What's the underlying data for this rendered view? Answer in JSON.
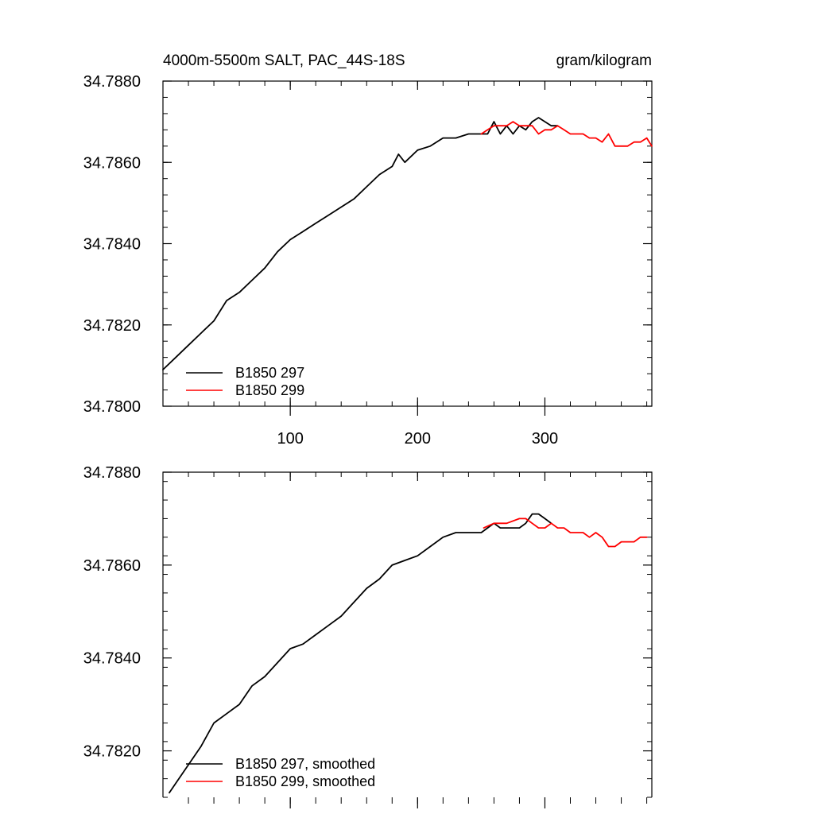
{
  "chart_data": [
    {
      "type": "line",
      "title": "4000m-5500m SALT, PAC_44S-18S",
      "units": "gram/kilogram",
      "xlabel": "",
      "ylabel": "",
      "xlim": [
        0,
        384
      ],
      "ylim": [
        34.78,
        34.788
      ],
      "x_ticks": [
        100,
        200,
        300
      ],
      "x_tick_labels": [
        "100",
        "200",
        "300"
      ],
      "y_ticks": [
        34.78,
        34.782,
        34.784,
        34.786,
        34.788
      ],
      "y_tick_labels": [
        "34.7800",
        "34.7820",
        "34.7840",
        "34.7860",
        "34.7880"
      ],
      "legend_position": "bottom-left",
      "series": [
        {
          "name": "B1850 297",
          "color": "#000000",
          "x": [
            0,
            10,
            20,
            30,
            40,
            50,
            60,
            70,
            80,
            90,
            100,
            110,
            120,
            130,
            140,
            150,
            160,
            170,
            180,
            185,
            190,
            200,
            210,
            220,
            230,
            240,
            250,
            255,
            260,
            265,
            270,
            275,
            280,
            285,
            290,
            295,
            300,
            305,
            310
          ],
          "y": [
            34.7809,
            34.7812,
            34.7815,
            34.7818,
            34.7821,
            34.7826,
            34.7828,
            34.7831,
            34.7834,
            34.7838,
            34.7841,
            34.7843,
            34.7845,
            34.7847,
            34.7849,
            34.7851,
            34.7854,
            34.7857,
            34.7859,
            34.7862,
            34.786,
            34.7863,
            34.7864,
            34.7866,
            34.7866,
            34.7867,
            34.7867,
            34.7867,
            34.787,
            34.7867,
            34.7869,
            34.7867,
            34.7869,
            34.7868,
            34.787,
            34.7871,
            34.787,
            34.7869,
            34.7869
          ]
        },
        {
          "name": "B1850 299",
          "color": "#ff0000",
          "x": [
            250,
            255,
            260,
            265,
            270,
            275,
            280,
            285,
            290,
            295,
            300,
            305,
            310,
            315,
            320,
            325,
            330,
            335,
            340,
            345,
            350,
            355,
            360,
            365,
            370,
            375,
            380,
            384
          ],
          "y": [
            34.7867,
            34.7868,
            34.7869,
            34.7869,
            34.7869,
            34.787,
            34.7869,
            34.7869,
            34.7869,
            34.7867,
            34.7868,
            34.7868,
            34.7869,
            34.7868,
            34.7867,
            34.7867,
            34.7867,
            34.7866,
            34.7866,
            34.7865,
            34.7867,
            34.7864,
            34.7864,
            34.7864,
            34.7865,
            34.7865,
            34.7866,
            34.7864
          ]
        }
      ]
    },
    {
      "type": "line",
      "title": "",
      "xlabel": "",
      "ylabel": "",
      "xlim": [
        0,
        384
      ],
      "ylim": [
        34.781,
        34.788
      ],
      "x_ticks": [
        100,
        200,
        300
      ],
      "x_tick_labels": [],
      "y_ticks": [
        34.782,
        34.784,
        34.786,
        34.788
      ],
      "y_tick_labels": [
        "34.7820",
        "34.7840",
        "34.7860",
        "34.7880"
      ],
      "legend_position": "bottom-left",
      "series": [
        {
          "name": "B1850 297, smoothed",
          "color": "#000000",
          "x": [
            5,
            10,
            20,
            30,
            40,
            50,
            60,
            70,
            80,
            90,
            100,
            110,
            120,
            130,
            140,
            150,
            160,
            170,
            180,
            190,
            200,
            210,
            220,
            230,
            240,
            250,
            255,
            260,
            265,
            270,
            275,
            280,
            285,
            290,
            295,
            300,
            305
          ],
          "y": [
            34.7811,
            34.7813,
            34.7817,
            34.7821,
            34.7826,
            34.7828,
            34.783,
            34.7834,
            34.7836,
            34.7839,
            34.7842,
            34.7843,
            34.7845,
            34.7847,
            34.7849,
            34.7852,
            34.7855,
            34.7857,
            34.786,
            34.7861,
            34.7862,
            34.7864,
            34.7866,
            34.7867,
            34.7867,
            34.7867,
            34.7868,
            34.7869,
            34.7868,
            34.7868,
            34.7868,
            34.7868,
            34.7869,
            34.7871,
            34.7871,
            34.787,
            34.7869
          ]
        },
        {
          "name": "B1850 299, smoothed",
          "color": "#ff0000",
          "x": [
            252,
            260,
            270,
            280,
            285,
            290,
            295,
            300,
            305,
            310,
            315,
            320,
            325,
            330,
            335,
            340,
            345,
            350,
            355,
            360,
            365,
            370,
            375,
            380
          ],
          "y": [
            34.7868,
            34.7869,
            34.7869,
            34.787,
            34.787,
            34.7869,
            34.7868,
            34.7868,
            34.7869,
            34.7868,
            34.7868,
            34.7867,
            34.7867,
            34.7867,
            34.7866,
            34.7867,
            34.7866,
            34.7864,
            34.7864,
            34.7865,
            34.7865,
            34.7865,
            34.7866,
            34.7866
          ]
        }
      ]
    }
  ]
}
